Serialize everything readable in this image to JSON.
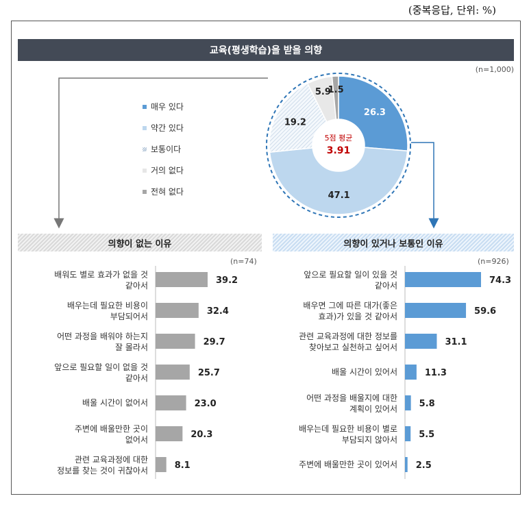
{
  "unit_note": "(중복응답,  단위: %)",
  "title": "교육(평생학습)을 받을 의향",
  "n_total": "(n=1,000)",
  "colors": {
    "very": "#5b9bd5",
    "some": "#bdd7ee",
    "normal": "#f2f2f2",
    "little": "#e6e6e6",
    "none": "#a6a6a6",
    "gray_bar": "#a6a6a6",
    "blue_bar": "#5b9bd5",
    "avg_text": "#c00000"
  },
  "legend": [
    {
      "label": "매우 있다",
      "color": "#5b9bd5"
    },
    {
      "label": "약간 있다",
      "color": "#bdd7ee"
    },
    {
      "label": "보통이다",
      "color": "#dce6f0"
    },
    {
      "label": "거의 없다",
      "color": "#e6e6e6"
    },
    {
      "label": "전혀 없다",
      "color": "#a6a6a6"
    }
  ],
  "center": {
    "label": "5점 평균",
    "value": "3.91"
  },
  "left_header": "의향이 없는 이유",
  "right_header": "의향이 있거나 보통인 이유",
  "left_n": "(n=74)",
  "right_n": "(n=926)",
  "chart_data": [
    {
      "type": "pie",
      "title": "교육(평생학습)을 받을 의향",
      "categories": [
        "매우 있다",
        "약간 있다",
        "보통이다",
        "거의 없다",
        "전혀 없다"
      ],
      "values": [
        26.3,
        47.1,
        19.2,
        5.9,
        1.5
      ],
      "value_labels": [
        "26.3",
        "47.1",
        "19.2",
        "5.9",
        "1.5"
      ],
      "center_text": [
        "5점 평균",
        "3.91"
      ]
    },
    {
      "type": "bar",
      "title": "의향이 없는 이유",
      "categories": [
        [
          "배워도 별로 효과가 없을 것",
          "같아서"
        ],
        [
          "배우는데 필요한 비용이",
          "부담되어서"
        ],
        [
          "어떤 과정을 배워야 하는지",
          "잘 몰라서"
        ],
        [
          "앞으로 필요할 일이 없을 것",
          "같아서"
        ],
        [
          "배울 시간이 없어서"
        ],
        [
          "주변에 배울만한 곳이",
          "없어서"
        ],
        [
          "관련 교육과정에 대한",
          "정보를 찾는 것이 귀찮아서"
        ]
      ],
      "values": [
        39.2,
        32.4,
        29.7,
        25.7,
        23.0,
        20.3,
        8.1
      ],
      "value_labels": [
        "39.2",
        "32.4",
        "29.7",
        "25.7",
        "23.0",
        "20.3",
        "8.1"
      ]
    },
    {
      "type": "bar",
      "title": "의향이 있거나 보통인 이유",
      "categories": [
        [
          "앞으로 필요할 일이 있을 것",
          "같아서"
        ],
        [
          "배우면 그에 따른 대가(좋은",
          "효과)가 있을 것 같아서"
        ],
        [
          "관련 교육과정에 대한 정보를",
          "찾아보고 실천하고 싶어서"
        ],
        [
          "배울 시간이 있어서"
        ],
        [
          "어떤 과정을 배울지에 대한",
          "계획이 있어서"
        ],
        [
          "배우는데 필요한 비용이 별로",
          "부담되지 않아서"
        ],
        [
          "주변에 배울만한 곳이 있어서"
        ]
      ],
      "values": [
        74.3,
        59.6,
        31.1,
        11.3,
        5.8,
        5.5,
        2.5
      ],
      "value_labels": [
        "74.3",
        "59.6",
        "31.1",
        "11.3",
        "5.8",
        "5.5",
        "2.5"
      ]
    }
  ]
}
